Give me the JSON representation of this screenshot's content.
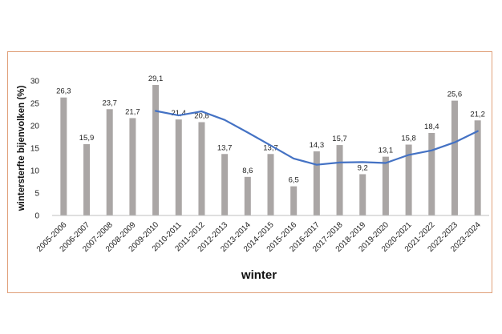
{
  "chart_data": {
    "type": "bar",
    "title": "",
    "xlabel": "winter",
    "ylabel": "wintersterfte bijenvolken (%)",
    "ylim": [
      0,
      30
    ],
    "yticks": [
      0,
      5,
      10,
      15,
      20,
      25,
      30
    ],
    "grid": false,
    "categories": [
      "2005-2006",
      "2006-2007",
      "2007-2008",
      "2008-2009",
      "2009-2010",
      "2010-2011",
      "2011-2012",
      "2012-2013",
      "2013-2014",
      "2014-2015",
      "2015-2016",
      "2016-2017",
      "2017-2018",
      "2018-2019",
      "2019-2020",
      "2020-2021",
      "2021-2022",
      "2022-2023",
      "2023-2024"
    ],
    "values": [
      26.3,
      15.9,
      23.7,
      21.7,
      29.1,
      21.4,
      20.8,
      13.7,
      8.6,
      13.7,
      6.5,
      14.3,
      15.7,
      9.2,
      13.1,
      15.8,
      18.4,
      25.6,
      21.2
    ],
    "value_labels": [
      "26,3",
      "15,9",
      "23,7",
      "21,7",
      "29,1",
      "21,4",
      "20,8",
      "13,7",
      "8,6",
      "13,7",
      "6,5",
      "14,3",
      "15,7",
      "9,2",
      "13,1",
      "15,8",
      "18,4",
      "25,6",
      "21,2"
    ],
    "trend": {
      "start_index": 4,
      "values": [
        23.3,
        22.3,
        23.2,
        21.3,
        18.5,
        15.6,
        12.7,
        11.3,
        11.8,
        11.9,
        11.7,
        13.5,
        14.5,
        16.3,
        18.8
      ]
    },
    "colors": {
      "bar": "#aaa6a5",
      "trend": "#4472c4",
      "frame": "#e0a07a"
    }
  }
}
